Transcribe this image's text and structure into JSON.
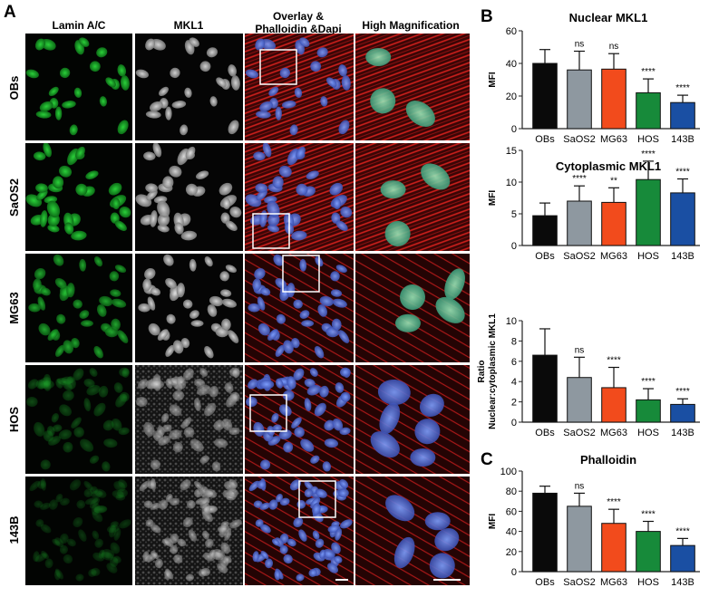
{
  "panel_a": {
    "letter": "A",
    "columns": [
      "Lamin A/C",
      "MKL1",
      "Overlay &",
      "Phalloidin &Dapi",
      "High Magnification"
    ],
    "rows": [
      "OBs",
      "SaOS2",
      "MG63",
      "HOS",
      "143B"
    ]
  },
  "panel_b_letter": "B",
  "panel_c_letter": "C",
  "chart_data": [
    {
      "type": "bar",
      "title": "Nuclear MKL1",
      "ylabel": "MFI",
      "ylabel2": "",
      "categories": [
        "OBs",
        "SaOS2",
        "MG63",
        "HOS",
        "143B"
      ],
      "values": [
        40,
        36,
        36.5,
        22,
        16
      ],
      "errors": [
        8.5,
        11.5,
        9.5,
        8.5,
        4.5
      ],
      "significance": [
        "",
        "ns",
        "ns",
        "****",
        "****"
      ],
      "ylim": [
        0,
        60
      ],
      "yticks": [
        0,
        20,
        40,
        60
      ]
    },
    {
      "type": "bar",
      "title": "Cytoplasmic MKL1",
      "ylabel": "MFI",
      "ylabel2": "",
      "categories": [
        "OBs",
        "SaOS2",
        "MG63",
        "HOS",
        "143B"
      ],
      "values": [
        4.7,
        7,
        6.8,
        10.4,
        8.3
      ],
      "errors": [
        2.0,
        2.4,
        2.3,
        2.9,
        2.2
      ],
      "significance": [
        "",
        "****",
        "**",
        "****",
        "****"
      ],
      "ylim": [
        0,
        15
      ],
      "yticks": [
        0,
        5,
        10,
        15
      ]
    },
    {
      "type": "bar",
      "title": "",
      "ylabel": "Ratio",
      "ylabel2": "Nuclear:cytoplasmic MKL1",
      "categories": [
        "OBs",
        "SaOS2",
        "MG63",
        "HOS",
        "143B"
      ],
      "values": [
        6.6,
        4.4,
        3.4,
        2.2,
        1.75
      ],
      "errors": [
        2.6,
        2.0,
        2.0,
        1.1,
        0.55
      ],
      "significance": [
        "",
        "ns",
        "****",
        "****",
        "****"
      ],
      "ylim": [
        0,
        10
      ],
      "yticks": [
        0,
        2,
        4,
        6,
        8,
        10
      ]
    },
    {
      "type": "bar",
      "title": "Phalloidin",
      "ylabel": "MFI",
      "ylabel2": "",
      "categories": [
        "OBs",
        "SaOS2",
        "MG63",
        "HOS",
        "143B"
      ],
      "values": [
        78,
        65,
        48,
        40,
        26
      ],
      "errors": [
        7,
        13,
        14,
        10,
        7
      ],
      "significance": [
        "",
        "ns",
        "****",
        "****",
        "****"
      ],
      "ylim": [
        0,
        100
      ],
      "yticks": [
        0,
        20,
        40,
        60,
        80,
        100
      ]
    }
  ],
  "colors": {
    "series": [
      "#0a0a0a",
      "#8e98a0",
      "#f24b1c",
      "#178a3a",
      "#1a4fa3"
    ],
    "green": "#1c9a2c",
    "red": "#c81c1c",
    "blue": "#4c66c8",
    "gray": "#a8a8a8",
    "box": "#ffffff"
  }
}
